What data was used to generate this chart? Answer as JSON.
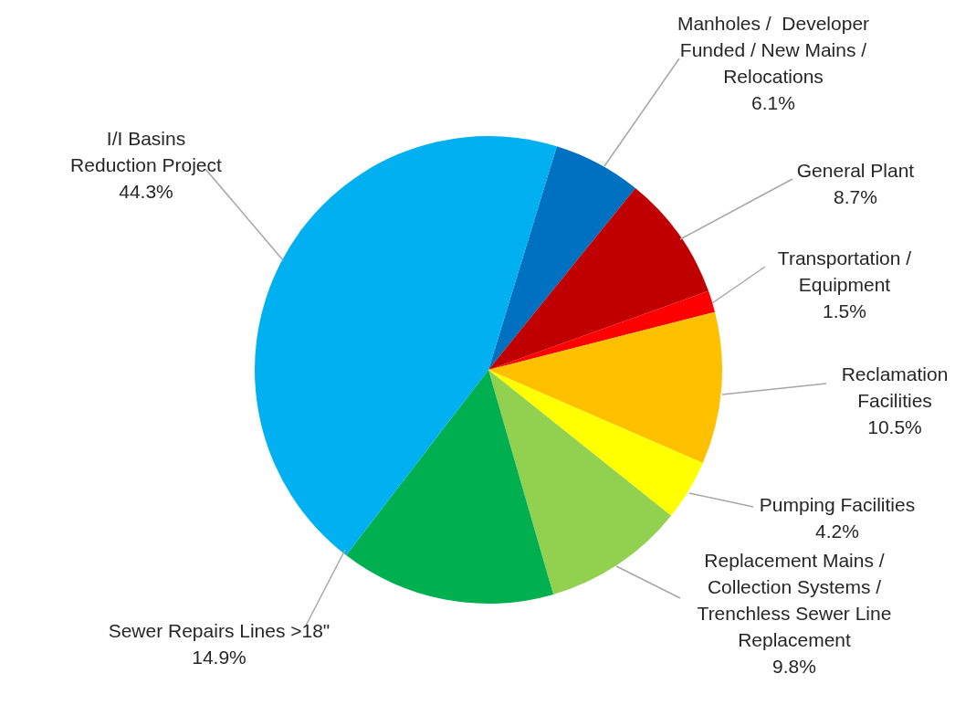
{
  "chart_data": {
    "type": "pie",
    "categories": [
      "Manholes /  Developer\nFunded / New Mains /\nRelocations",
      "General Plant",
      "Transportation /\nEquipment",
      "Reclamation\nFacilities",
      "Pumping Facilities",
      "Replacement Mains /\nCollection Systems /\nTrenchless Sewer Line\nReplacement",
      "Sewer Repairs Lines >18\"",
      "I/I Basins\nReduction Project"
    ],
    "values": [
      6.1,
      8.7,
      1.5,
      10.5,
      4.2,
      9.8,
      14.9,
      44.3
    ],
    "value_labels": [
      "6.1%",
      "8.7%",
      "1.5%",
      "10.5%",
      "4.2%",
      "9.8%",
      "14.9%",
      "44.3%"
    ],
    "colors": [
      "#0070c0",
      "#c00000",
      "#ff0000",
      "#ffc000",
      "#ffff00",
      "#92d050",
      "#00b050",
      "#00b0f0"
    ]
  }
}
